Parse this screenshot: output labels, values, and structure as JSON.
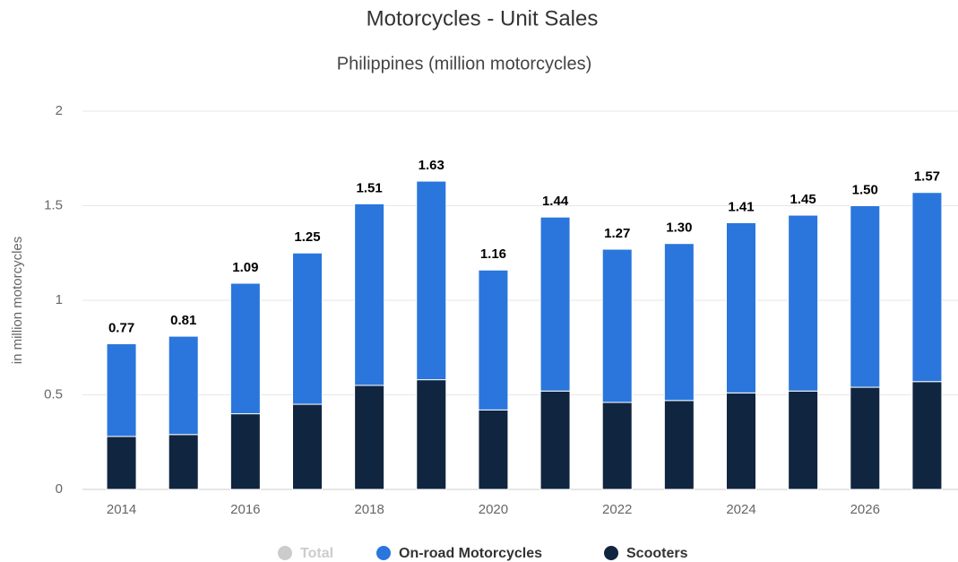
{
  "chart_data": {
    "type": "stacked_bar",
    "title": "Motorcycles - Unit Sales",
    "subtitle": "Philippines (million motorcycles)",
    "y_label": "in million motorcycles",
    "categories": [
      "2014",
      null,
      "2016",
      null,
      "2018",
      null,
      "2020",
      null,
      "2022",
      null,
      "2024",
      null,
      "2026",
      null
    ],
    "series": [
      {
        "name": "Total",
        "color": "#cccccc",
        "hidden": true,
        "values": [
          0.77,
          0.81,
          1.09,
          1.25,
          1.51,
          1.63,
          1.16,
          1.44,
          1.27,
          1.3,
          1.41,
          1.45,
          1.5,
          1.57
        ],
        "value_labels": [
          "0.77",
          "0.81",
          "1.09",
          "1.25",
          "1.51",
          "1.63",
          "1.16",
          "1.44",
          "1.27",
          "1.30",
          "1.41",
          "1.45",
          "1.50",
          "1.57"
        ]
      },
      {
        "name": "On-road Motorcycles",
        "color": "#2a76dd",
        "values": [
          0.49,
          0.52,
          0.69,
          0.8,
          0.96,
          1.05,
          0.74,
          0.92,
          0.81,
          0.83,
          0.9,
          0.93,
          0.96,
          1.0
        ]
      },
      {
        "name": "Scooters",
        "color": "#10253f",
        "values": [
          0.28,
          0.29,
          0.4,
          0.45,
          0.55,
          0.58,
          0.42,
          0.52,
          0.46,
          0.47,
          0.51,
          0.52,
          0.54,
          0.57
        ]
      }
    ],
    "ylim": [
      0,
      2
    ],
    "yticks": [
      0,
      0.5,
      1,
      1.5,
      2
    ],
    "grid": true
  }
}
